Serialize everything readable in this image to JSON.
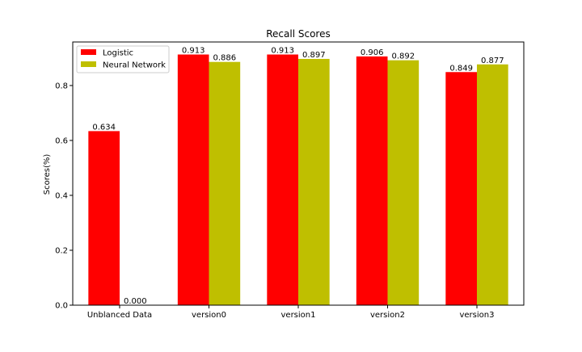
{
  "chart_data": {
    "type": "bar",
    "title": "Recall Scores",
    "xlabel": "",
    "ylabel": "Scores(%)",
    "categories": [
      "Unblanced Data",
      "version0",
      "version1",
      "version2",
      "version3"
    ],
    "series": [
      {
        "name": "Logistic",
        "color": "#ff0000",
        "values": [
          0.634,
          0.913,
          0.913,
          0.906,
          0.849
        ]
      },
      {
        "name": "Neural Network",
        "color": "#bfbf00",
        "values": [
          0.0,
          0.886,
          0.897,
          0.892,
          0.877
        ]
      }
    ],
    "data_labels": [
      [
        "0.634",
        "0.913",
        "0.913",
        "0.906",
        "0.849"
      ],
      [
        "0.000",
        "0.886",
        "0.897",
        "0.892",
        "0.877"
      ]
    ],
    "ylim": [
      0,
      0.9586
    ],
    "yticks": [
      0.0,
      0.2,
      0.4,
      0.6,
      0.8
    ],
    "ytick_labels": [
      "0.0",
      "0.2",
      "0.4",
      "0.6",
      "0.8"
    ],
    "grid": false,
    "legend_position": "top-left"
  }
}
